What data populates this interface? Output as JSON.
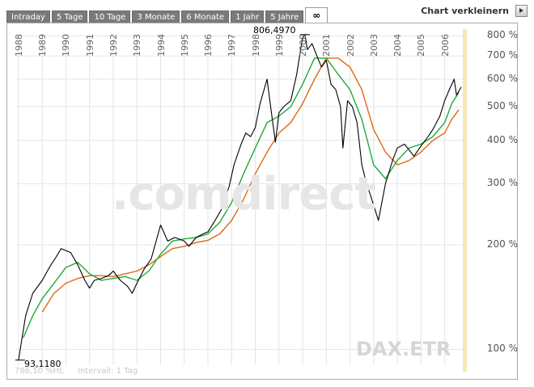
{
  "tabs": [
    {
      "label": "Intraday",
      "name": "tab-intraday",
      "active": false
    },
    {
      "label": "5 Tage",
      "name": "tab-5-tage",
      "active": false
    },
    {
      "label": "10 Tage",
      "name": "tab-10-tage",
      "active": false
    },
    {
      "label": "3 Monate",
      "name": "tab-3-monate",
      "active": false
    },
    {
      "label": "6 Monate",
      "name": "tab-6-monate",
      "active": false
    },
    {
      "label": "1 Jahr",
      "name": "tab-1-jahr",
      "active": false
    },
    {
      "label": "5 Jahre",
      "name": "tab-5-jahre",
      "active": false
    },
    {
      "label": "∞",
      "name": "tab-max",
      "active": true
    }
  ],
  "controls": {
    "shrink_label": "Chart verkleinern",
    "shrink_icon": "triangle-right-icon"
  },
  "watermark": {
    "brand": ".comdirect",
    "symbol": "DAX.ETR"
  },
  "footer": {
    "scale": "786,10 %HL",
    "interval": "Intervall: 1 Tag"
  },
  "annotations": {
    "max": "806,4970",
    "min": "93,1180"
  },
  "colors": {
    "price": "#000000",
    "ma_short": "#1faa3a",
    "ma_long": "#dd6a10",
    "current_band": "#f5e8b5",
    "grid": "#e4e4e4"
  },
  "chart_data": {
    "type": "line",
    "title": "",
    "xlabel": "",
    "ylabel": "",
    "y_scale": "log",
    "ylim": [
      90,
      810
    ],
    "xlim": [
      1987.9,
      2006.8
    ],
    "grid": true,
    "y_ticks": [
      {
        "value": 100,
        "label": "100 %"
      },
      {
        "value": 200,
        "label": "200 %"
      },
      {
        "value": 300,
        "label": "300 %"
      },
      {
        "value": 400,
        "label": "400 %"
      },
      {
        "value": 500,
        "label": "500 %"
      },
      {
        "value": 600,
        "label": "600 %"
      },
      {
        "value": 700,
        "label": "700 %"
      },
      {
        "value": 800,
        "label": "800 %"
      }
    ],
    "x_ticks": [
      "1988",
      "1989",
      "1990",
      "1991",
      "1992",
      "1993",
      "1994",
      "1995",
      "1996",
      "1997",
      "1998",
      "1999",
      "2000",
      "2001",
      "2002",
      "2003",
      "2004",
      "2005",
      "2006"
    ],
    "series": [
      {
        "key": "price",
        "x": [
          1988.0,
          1988.3,
          1988.6,
          1989.0,
          1989.3,
          1989.6,
          1989.8,
          1990.2,
          1990.5,
          1990.8,
          1991.0,
          1991.2,
          1991.5,
          1991.8,
          1992.0,
          1992.3,
          1992.6,
          1992.8,
          1993.0,
          1993.3,
          1993.6,
          1994.0,
          1994.3,
          1994.6,
          1995.0,
          1995.2,
          1995.5,
          1995.8,
          1996.0,
          1996.3,
          1996.6,
          1996.9,
          1997.1,
          1997.4,
          1997.6,
          1997.8,
          1998.0,
          1998.2,
          1998.5,
          1998.7,
          1998.85,
          1999.0,
          1999.2,
          1999.5,
          1999.75,
          1999.9,
          2000.0,
          2000.1,
          2000.2,
          2000.4,
          2000.6,
          2000.8,
          2001.0,
          2001.2,
          2001.4,
          2001.6,
          2001.7,
          2001.9,
          2002.1,
          2002.3,
          2002.5,
          2002.7,
          2002.85,
          2003.0,
          2003.2,
          2003.5,
          2003.8,
          2004.0,
          2004.3,
          2004.5,
          2004.7,
          2005.0,
          2005.3,
          2005.5,
          2005.8,
          2006.0,
          2006.2,
          2006.4,
          2006.5,
          2006.7
        ],
        "values": [
          93.1,
          125,
          145,
          158,
          172,
          185,
          195,
          190,
          175,
          158,
          150,
          158,
          160,
          163,
          168,
          158,
          152,
          145,
          155,
          170,
          182,
          228,
          205,
          210,
          205,
          198,
          210,
          215,
          218,
          235,
          255,
          295,
          340,
          390,
          420,
          410,
          435,
          510,
          600,
          470,
          395,
          480,
          500,
          520,
          620,
          720,
          790,
          806.5,
          730,
          760,
          700,
          650,
          680,
          580,
          560,
          500,
          380,
          520,
          500,
          450,
          340,
          300,
          280,
          260,
          235,
          300,
          350,
          380,
          390,
          375,
          360,
          385,
          410,
          430,
          470,
          520,
          560,
          600,
          540,
          570
        ]
      },
      {
        "key": "ma_short",
        "x": [
          1988.2,
          1988.6,
          1989.0,
          1989.5,
          1990.0,
          1990.5,
          1991.0,
          1991.5,
          1992.0,
          1992.5,
          1993.0,
          1993.5,
          1994.0,
          1994.5,
          1995.0,
          1995.5,
          1996.0,
          1996.5,
          1997.0,
          1997.5,
          1998.0,
          1998.5,
          1999.0,
          1999.5,
          2000.0,
          2000.5,
          2001.0,
          2001.5,
          2002.0,
          2002.5,
          2003.0,
          2003.5,
          2004.0,
          2004.5,
          2005.0,
          2005.5,
          2006.0,
          2006.3,
          2006.6
        ],
        "values": [
          108,
          125,
          140,
          155,
          172,
          178,
          165,
          158,
          160,
          162,
          158,
          168,
          188,
          205,
          208,
          210,
          215,
          232,
          265,
          320,
          380,
          450,
          470,
          500,
          580,
          690,
          690,
          620,
          560,
          460,
          340,
          310,
          350,
          380,
          390,
          410,
          450,
          510,
          550
        ]
      },
      {
        "key": "ma_long",
        "x": [
          1989.0,
          1989.5,
          1990.0,
          1990.5,
          1991.0,
          1991.5,
          1992.0,
          1992.5,
          1993.0,
          1993.5,
          1994.0,
          1994.5,
          1995.0,
          1995.5,
          1996.0,
          1996.5,
          1997.0,
          1997.5,
          1998.0,
          1998.5,
          1999.0,
          1999.5,
          2000.0,
          2000.5,
          2001.0,
          2001.5,
          2002.0,
          2002.5,
          2003.0,
          2003.5,
          2004.0,
          2004.5,
          2005.0,
          2005.5,
          2006.0,
          2006.3,
          2006.6
        ],
        "values": [
          128,
          145,
          155,
          160,
          163,
          163,
          162,
          165,
          168,
          175,
          185,
          195,
          198,
          203,
          206,
          215,
          235,
          270,
          320,
          370,
          420,
          450,
          510,
          600,
          690,
          690,
          650,
          560,
          430,
          370,
          340,
          350,
          370,
          400,
          420,
          460,
          490
        ]
      }
    ]
  }
}
